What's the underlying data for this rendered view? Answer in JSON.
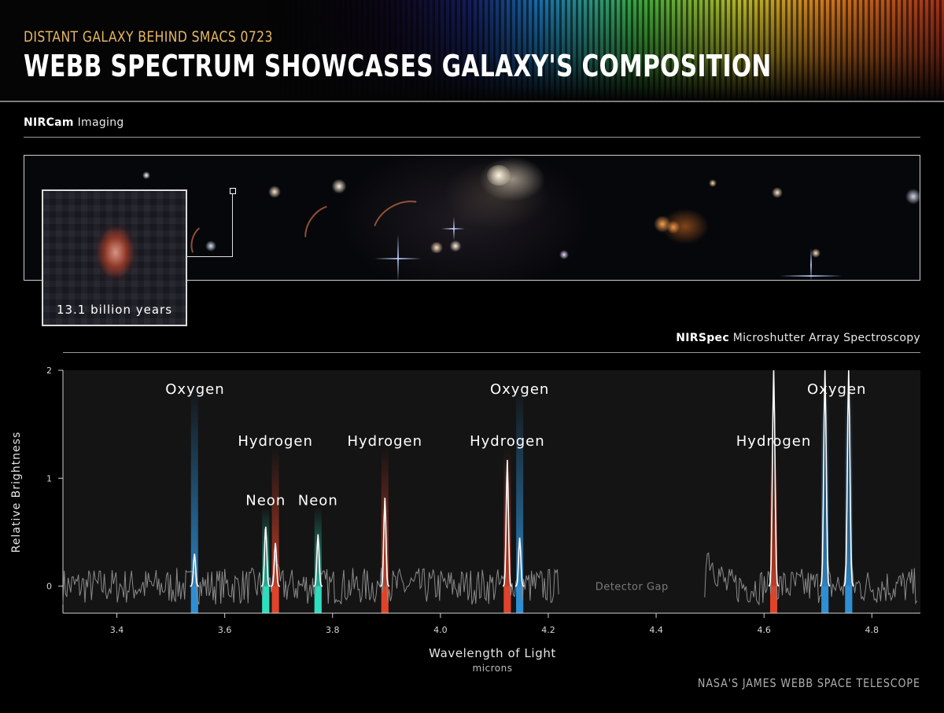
{
  "header": {
    "kicker": "DISTANT GALAXY BEHIND SMACS 0723",
    "title": "WEBB SPECTRUM SHOWCASES GALAXY'S COMPOSITION"
  },
  "imaging_section": {
    "label_bold": "NIRCam",
    "label_rest": " Imaging",
    "inset_label": "13.1 billion years"
  },
  "spectroscopy_section": {
    "label_bold": "NIRSpec",
    "label_rest": " Microshutter Array Spectroscopy"
  },
  "credit": "NASA'S JAMES WEBB SPACE TELESCOPE",
  "colors": {
    "oxygen": "#2f8fd4",
    "hydrogen": "#e0452a",
    "neon": "#2fe0c0",
    "trace": "#8a8a8a",
    "peak": "#ffffff",
    "kicker": "#e8b761"
  },
  "chart_data": {
    "type": "line",
    "xlabel": "Wavelength of Light",
    "xunit": "microns",
    "ylabel": "Relative Brightness",
    "xlim": [
      3.3,
      4.89
    ],
    "ylim": [
      -0.25,
      2.0
    ],
    "xticks": [
      "3.4",
      "3.6",
      "3.8",
      "4.0",
      "4.2",
      "4.4",
      "4.6",
      "4.8"
    ],
    "yticks": [
      "0",
      "1",
      "2"
    ],
    "detector_gap": {
      "label": "Detector Gap",
      "x_range": [
        4.22,
        4.49
      ]
    },
    "lines": [
      {
        "element": "Oxygen",
        "x": 3.544,
        "peak": 0.3
      },
      {
        "element": "Neon",
        "x": 3.676,
        "peak": 0.55
      },
      {
        "element": "Hydrogen",
        "x": 3.694,
        "peak": 0.4
      },
      {
        "element": "Neon",
        "x": 3.773,
        "peak": 0.48
      },
      {
        "element": "Hydrogen",
        "x": 3.897,
        "peak": 0.82
      },
      {
        "element": "Hydrogen",
        "x": 4.124,
        "peak": 1.17
      },
      {
        "element": "Oxygen",
        "x": 4.147,
        "peak": 0.45
      },
      {
        "element": "Hydrogen",
        "x": 4.618,
        "peak": 2.0
      },
      {
        "element": "Oxygen",
        "x": 4.713,
        "peak": 2.0
      },
      {
        "element": "Oxygen",
        "x": 4.757,
        "peak": 2.0
      }
    ],
    "labels": [
      {
        "text": "Oxygen",
        "x": 3.545,
        "y": 1.78
      },
      {
        "text": "Hydrogen",
        "x": 3.694,
        "y": 1.3
      },
      {
        "text": "Hydrogen",
        "x": 3.897,
        "y": 1.3
      },
      {
        "text": "Neon",
        "x": 3.676,
        "y": 0.75
      },
      {
        "text": "Neon",
        "x": 3.773,
        "y": 0.75
      },
      {
        "text": "Oxygen",
        "x": 4.147,
        "y": 1.78
      },
      {
        "text": "Hydrogen",
        "x": 4.124,
        "y": 1.3
      },
      {
        "text": "Hydrogen",
        "x": 4.618,
        "y": 1.3
      },
      {
        "text": "Oxygen",
        "x": 4.735,
        "y": 1.78
      }
    ]
  }
}
